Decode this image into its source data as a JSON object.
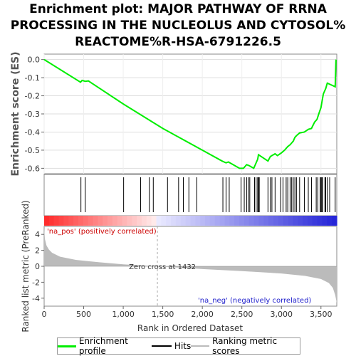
{
  "title_lines": [
    "Enrichment plot: MAJOR PATHWAY OF RRNA",
    "PROCESSING IN THE NUCLEOLUS AND CYTOSOL%",
    "REACTOME%R-HSA-6791226.5"
  ],
  "colors": {
    "enrichment_line": "#00ee00",
    "hits": "#000000",
    "ranking_fill": "#bbbbbb",
    "pos_label": "#cc0000",
    "neg_label": "#2222cc",
    "zero_cross_line": "#aaaaaa"
  },
  "chart_data": [
    {
      "type": "line",
      "name": "enrichment-profile",
      "ylabel": "Enrichment score (ES)",
      "xlim": [
        0,
        3700
      ],
      "ylim": [
        -0.63,
        0.03
      ],
      "yticks": [
        0.0,
        -0.1,
        -0.2,
        -0.3,
        -0.4,
        -0.5,
        -0.6
      ],
      "ytick_labels": [
        "0.0",
        "-0.1",
        "-0.2",
        "-0.3",
        "-0.4",
        "-0.5",
        "-0.6"
      ],
      "grid": true,
      "x": [
        0,
        460,
        480,
        520,
        560,
        1000,
        1500,
        2000,
        2250,
        2300,
        2330,
        2470,
        2520,
        2560,
        2590,
        2650,
        2680,
        2700,
        2710,
        2830,
        2860,
        2880,
        2920,
        2950,
        3000,
        3040,
        3060,
        3080,
        3110,
        3130,
        3150,
        3170,
        3190,
        3230,
        3290,
        3340,
        3380,
        3420,
        3450,
        3480,
        3500,
        3510,
        3530,
        3560,
        3580,
        3680,
        3690
      ],
      "y": [
        0.0,
        -0.125,
        -0.115,
        -0.12,
        -0.118,
        -0.245,
        -0.38,
        -0.5,
        -0.56,
        -0.57,
        -0.565,
        -0.6,
        -0.6,
        -0.58,
        -0.585,
        -0.6,
        -0.57,
        -0.55,
        -0.525,
        -0.56,
        -0.535,
        -0.53,
        -0.52,
        -0.53,
        -0.515,
        -0.5,
        -0.49,
        -0.48,
        -0.47,
        -0.46,
        -0.45,
        -0.43,
        -0.42,
        -0.405,
        -0.4,
        -0.385,
        -0.38,
        -0.345,
        -0.33,
        -0.29,
        -0.265,
        -0.24,
        -0.19,
        -0.16,
        -0.13,
        -0.15,
        0.0
      ]
    },
    {
      "type": "scatter",
      "name": "hits",
      "hit_positions": [
        465,
        520,
        1005,
        1220,
        1330,
        1380,
        1560,
        1700,
        1760,
        1830,
        1930,
        2260,
        2300,
        2340,
        2490,
        2530,
        2560,
        2580,
        2600,
        2660,
        2680,
        2700,
        2710,
        2720,
        2830,
        2860,
        2880,
        2920,
        2990,
        3020,
        3060,
        3080,
        3110,
        3130,
        3150,
        3170,
        3190,
        3230,
        3290,
        3340,
        3380,
        3440,
        3460,
        3490,
        3500,
        3510,
        3520,
        3550,
        3560,
        3580,
        3610,
        3680
      ]
    },
    {
      "type": "area",
      "name": "ranked-list-metric",
      "ylabel": "Ranked list metric (PreRanked)",
      "xlabel": "Rank in Ordered Dataset",
      "xlim": [
        0,
        3700
      ],
      "ylim": [
        -5,
        5
      ],
      "xticks": [
        0,
        500,
        1000,
        1500,
        2000,
        2500,
        3000,
        3500
      ],
      "xtick_labels": [
        "0",
        "500",
        "1,000",
        "1,500",
        "2,000",
        "2,500",
        "3,000",
        "3,500"
      ],
      "yticks": [
        4,
        2,
        0,
        -2,
        -4
      ],
      "ytick_labels": [
        "4",
        "2",
        "0",
        "-2",
        "-4"
      ],
      "x": [
        0,
        10,
        30,
        60,
        100,
        200,
        400,
        700,
        1000,
        1432,
        2000,
        2500,
        3000,
        3300,
        3500,
        3600,
        3650,
        3680,
        3700
      ],
      "y": [
        4.8,
        3.4,
        2.6,
        2.1,
        1.7,
        1.2,
        0.8,
        0.5,
        0.25,
        0.0,
        -0.35,
        -0.6,
        -0.9,
        -1.2,
        -1.6,
        -2.1,
        -2.7,
        -3.6,
        -4.6
      ],
      "zero_cross_rank": 1432,
      "annotations": {
        "zero_cross": "Zero cross at 1432",
        "pos": "'na_pos' (positively correlated)",
        "neg": "'na_neg' (negatively correlated)"
      }
    }
  ],
  "legend": {
    "placement": "bottom",
    "items": [
      "Enrichment profile",
      "Hits",
      "Ranking metric scores"
    ]
  }
}
